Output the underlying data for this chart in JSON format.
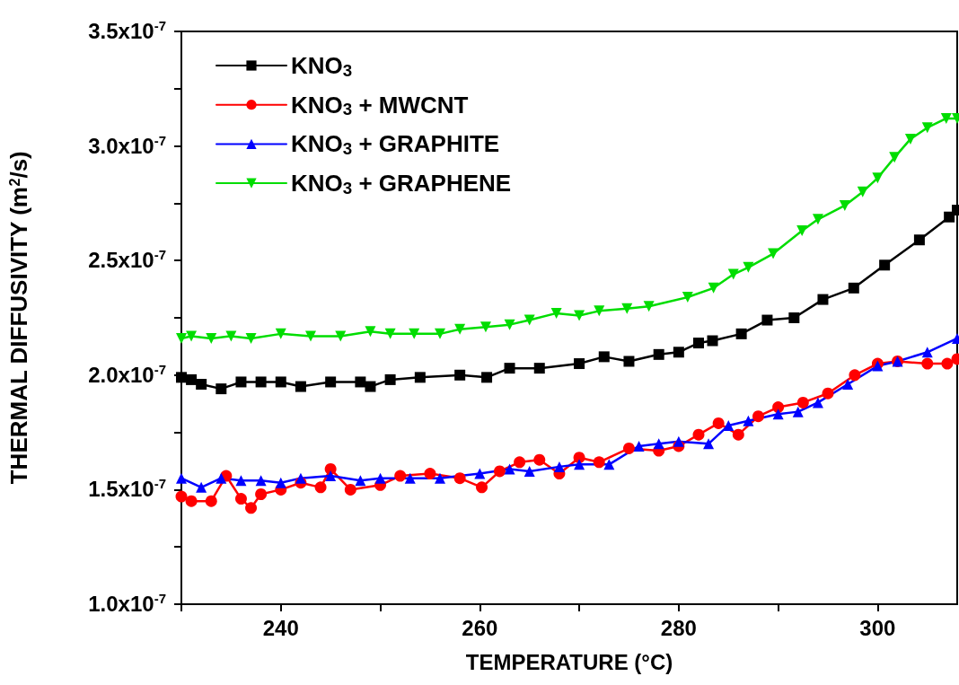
{
  "chart_data": {
    "type": "line",
    "xlabel": "TEMPERATURE (°C)",
    "ylabel": "THERMAL DIFFUSIVITY (m$^{2}$/s)",
    "xlim": [
      230,
      308
    ],
    "xticks": [
      {
        "value": 230,
        "label": null
      },
      240,
      {
        "value": 250,
        "label": null
      },
      260,
      {
        "value": 270,
        "label": null
      },
      280,
      {
        "value": 290,
        "label": null
      },
      300
    ],
    "ylim": [
      1e-07,
      3.5e-07
    ],
    "yticks": [
      {
        "value": 1e-07,
        "label": "1.0x10$^{-7}$"
      },
      {
        "value": 1.25e-07,
        "label": null
      },
      {
        "value": 1.5e-07,
        "label": "1.5x10$^{-7}$"
      },
      {
        "value": 1.75e-07,
        "label": null
      },
      {
        "value": 2e-07,
        "label": "2.0x10$^{-7}$"
      },
      {
        "value": 2.25e-07,
        "label": null
      },
      {
        "value": 2.5e-07,
        "label": "2.5x10$^{-7}$"
      },
      {
        "value": 2.75e-07,
        "label": null
      },
      {
        "value": 3e-07,
        "label": "3.0x10$^{-7}$"
      },
      {
        "value": 3.25e-07,
        "label": null
      },
      {
        "value": 3.5e-07,
        "label": "3.5x10$^{-7}$"
      }
    ],
    "grid": false,
    "legend": "top left",
    "line_style": "solid",
    "series": [
      {
        "name": "KNO$_{3}$",
        "color": "#000000",
        "marker": "square",
        "x": [
          230,
          231,
          232,
          234,
          236,
          238,
          240,
          242,
          245,
          248,
          249,
          251,
          254,
          258,
          260.7,
          263,
          266,
          270,
          272.5,
          275,
          278,
          280,
          282,
          283.4,
          286.3,
          288.9,
          291.6,
          294.5,
          297.6,
          300.7,
          304.2,
          307.2,
          308
        ],
        "values": [
          1.99e-07,
          1.98e-07,
          1.96e-07,
          1.94e-07,
          1.97e-07,
          1.97e-07,
          1.97e-07,
          1.95e-07,
          1.97e-07,
          1.97e-07,
          1.95e-07,
          1.98e-07,
          1.99e-07,
          2e-07,
          1.99e-07,
          2.03e-07,
          2.03e-07,
          2.05e-07,
          2.08e-07,
          2.06e-07,
          2.09e-07,
          2.1e-07,
          2.14e-07,
          2.15e-07,
          2.18e-07,
          2.24e-07,
          2.25e-07,
          2.33e-07,
          2.38e-07,
          2.48e-07,
          2.59e-07,
          2.69e-07,
          2.72e-07
        ]
      },
      {
        "name": "KNO$_{3}$ + MWCNT",
        "color": "#ff0000",
        "marker": "circle",
        "x": [
          230,
          231,
          233,
          234.5,
          236,
          237,
          238,
          240,
          242,
          244,
          245,
          247,
          250,
          252,
          255,
          258,
          260.2,
          262,
          264,
          266,
          268,
          270,
          272,
          275,
          278,
          280,
          282,
          284,
          286,
          288,
          290,
          292.5,
          295,
          297.7,
          300,
          302,
          305,
          307,
          308
        ],
        "values": [
          1.47e-07,
          1.45e-07,
          1.45e-07,
          1.56e-07,
          1.46e-07,
          1.42e-07,
          1.48e-07,
          1.5e-07,
          1.53e-07,
          1.51e-07,
          1.59e-07,
          1.5e-07,
          1.52e-07,
          1.56e-07,
          1.57e-07,
          1.55e-07,
          1.51e-07,
          1.58e-07,
          1.62e-07,
          1.63e-07,
          1.57e-07,
          1.64e-07,
          1.62e-07,
          1.68e-07,
          1.67e-07,
          1.69e-07,
          1.74e-07,
          1.79e-07,
          1.74e-07,
          1.82e-07,
          1.86e-07,
          1.88e-07,
          1.92e-07,
          2e-07,
          2.05e-07,
          2.06e-07,
          2.05e-07,
          2.05e-07,
          2.07e-07
        ]
      },
      {
        "name": "KNO$_{3}$ + GRAPHITE",
        "color": "#0000ff",
        "marker": "triangle",
        "x": [
          230,
          232,
          234,
          236,
          238,
          240,
          242,
          245,
          248,
          250,
          253,
          256,
          260,
          263,
          265,
          268,
          270,
          273,
          276,
          278,
          280,
          283,
          285,
          287,
          290,
          292,
          294,
          297,
          300,
          302,
          305,
          308
        ],
        "values": [
          1.55e-07,
          1.51e-07,
          1.55e-07,
          1.54e-07,
          1.54e-07,
          1.53e-07,
          1.55e-07,
          1.56e-07,
          1.54e-07,
          1.55e-07,
          1.55e-07,
          1.55e-07,
          1.57e-07,
          1.59e-07,
          1.58e-07,
          1.6e-07,
          1.61e-07,
          1.61e-07,
          1.69e-07,
          1.7e-07,
          1.71e-07,
          1.7e-07,
          1.78e-07,
          1.8e-07,
          1.83e-07,
          1.84e-07,
          1.88e-07,
          1.96e-07,
          2.04e-07,
          2.06e-07,
          2.1e-07,
          2.16e-07
        ]
      },
      {
        "name": "KNO$_{3}$ + GRAPHENE",
        "color": "#00dd00",
        "marker": "triangle-down",
        "x": [
          230,
          231,
          233,
          235,
          237,
          240,
          243,
          246,
          249,
          251,
          253.4,
          256,
          258,
          260.6,
          263,
          265,
          267.7,
          270,
          272,
          274.8,
          277,
          280.9,
          283.5,
          285.5,
          287,
          289.5,
          292.4,
          294,
          296.7,
          298.5,
          300,
          301.7,
          303.3,
          305,
          306.9,
          308
        ],
        "values": [
          2.16e-07,
          2.17e-07,
          2.16e-07,
          2.17e-07,
          2.16e-07,
          2.18e-07,
          2.17e-07,
          2.17e-07,
          2.19e-07,
          2.18e-07,
          2.18e-07,
          2.18e-07,
          2.2e-07,
          2.21e-07,
          2.22e-07,
          2.24e-07,
          2.27e-07,
          2.26e-07,
          2.28e-07,
          2.29e-07,
          2.3e-07,
          2.34e-07,
          2.38e-07,
          2.44e-07,
          2.47e-07,
          2.53e-07,
          2.63e-07,
          2.68e-07,
          2.74e-07,
          2.8e-07,
          2.86e-07,
          2.95e-07,
          3.03e-07,
          3.08e-07,
          3.12e-07,
          3.12e-07
        ]
      }
    ]
  }
}
